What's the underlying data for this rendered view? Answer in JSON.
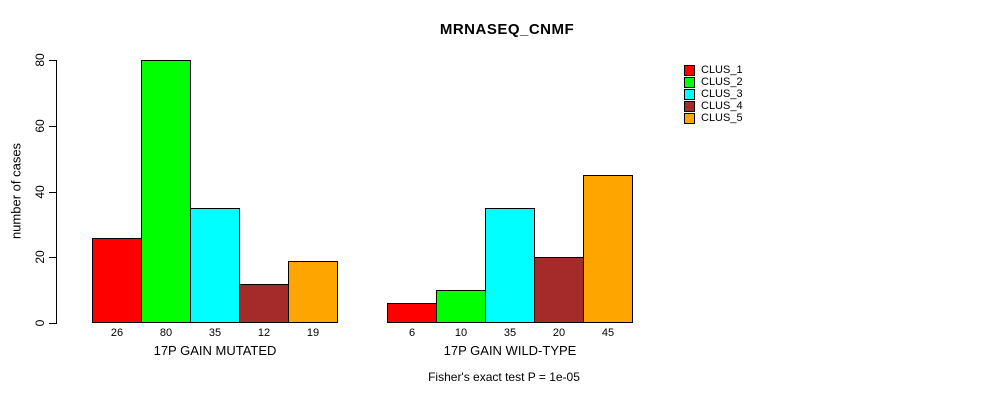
{
  "chart_data": {
    "type": "bar",
    "title": "MRNASEQ_CNMF",
    "ylabel": "number of cases",
    "ylim": [
      0,
      80
    ],
    "yticks": [
      0,
      20,
      40,
      60,
      80
    ],
    "grid": false,
    "legend_position": "right",
    "series": [
      {
        "name": "CLUS_1",
        "color": "#FF0000"
      },
      {
        "name": "CLUS_2",
        "color": "#00FF00"
      },
      {
        "name": "CLUS_3",
        "color": "#00FFFF"
      },
      {
        "name": "CLUS_4",
        "color": "#A52A2A"
      },
      {
        "name": "CLUS_5",
        "color": "#FFA500"
      }
    ],
    "groups": [
      {
        "label": "17P GAIN MUTATED",
        "values": [
          26,
          80,
          35,
          12,
          19
        ]
      },
      {
        "label": "17P GAIN WILD-TYPE",
        "values": [
          6,
          10,
          35,
          20,
          45
        ]
      }
    ],
    "bar_value_labels_shown": true,
    "annotation": "Fisher's exact test P = 1e-05"
  }
}
